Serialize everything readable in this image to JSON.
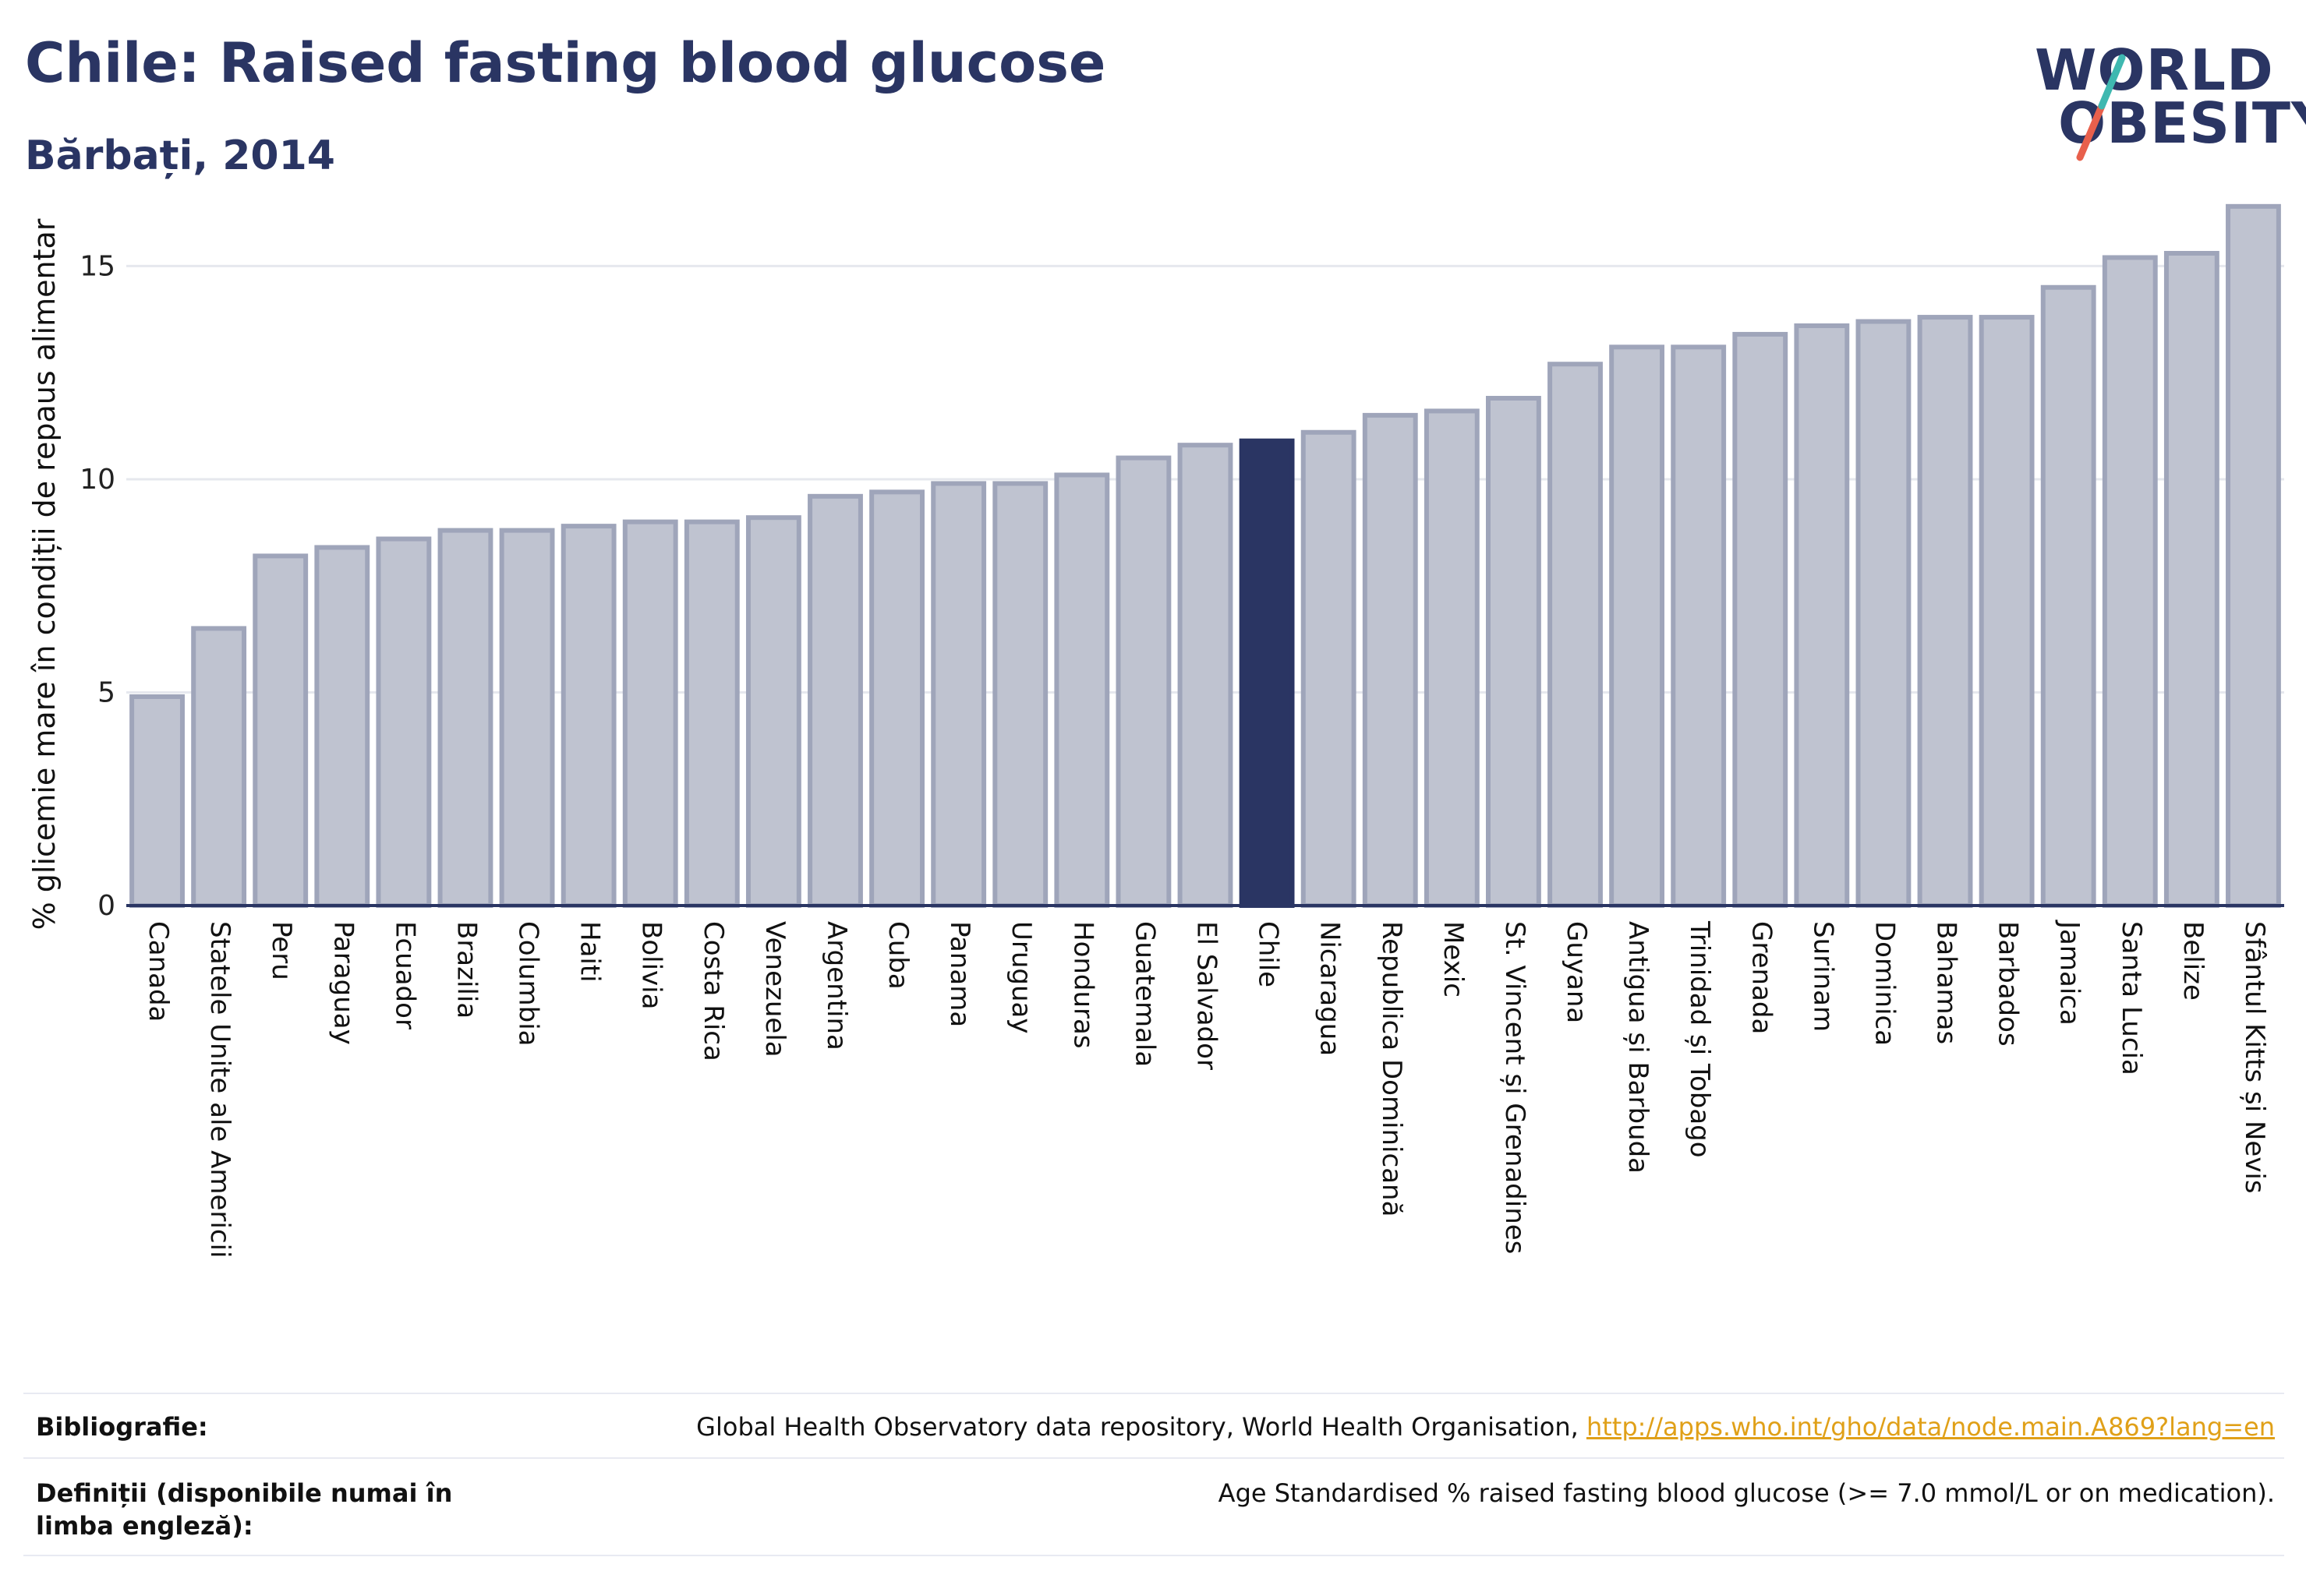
{
  "header": {
    "title": "Chile: Raised fasting blood glucose",
    "subtitle": "Bărbați, 2014"
  },
  "logo": {
    "line1": "WORLD",
    "line2": "OBESITY",
    "colors": {
      "text": "#2a3563",
      "slash_teal": "#3fb8b0",
      "slash_red": "#e8604c"
    }
  },
  "chart_data": {
    "type": "bar",
    "title": "Chile: Raised fasting blood glucose",
    "subtitle": "Bărbați, 2014",
    "ylabel": "% glicemie mare în condiții de repaus alimentar",
    "xlabel": "",
    "ylim": [
      0,
      17
    ],
    "yticks": [
      0,
      5,
      10,
      15
    ],
    "grid": true,
    "highlight": "Chile",
    "colors": {
      "bar": "#bfc3d0",
      "bar_border": "#9fa5ba",
      "highlight": "#2a3563"
    },
    "categories": [
      "Canada",
      "Statele Unite ale Americii",
      "Peru",
      "Paraguay",
      "Ecuador",
      "Brazilia",
      "Columbia",
      "Haiti",
      "Bolivia",
      "Costa Rica",
      "Venezuela",
      "Argentina",
      "Cuba",
      "Panama",
      "Uruguay",
      "Honduras",
      "Guatemala",
      "El Salvador",
      "Chile",
      "Nicaragua",
      "Republica Dominicană",
      "Mexic",
      "St. Vincent și Grenadines",
      "Guyana",
      "Antigua și Barbuda",
      "Trinidad și Tobago",
      "Grenada",
      "Surinam",
      "Dominica",
      "Bahamas",
      "Barbados",
      "Jamaica",
      "Santa Lucia",
      "Belize",
      "Sfântul Kitts și Nevis"
    ],
    "values": [
      4.9,
      6.5,
      8.2,
      8.4,
      8.6,
      8.8,
      8.8,
      8.9,
      9.0,
      9.0,
      9.1,
      9.6,
      9.7,
      9.9,
      9.9,
      10.1,
      10.5,
      10.8,
      10.9,
      11.1,
      11.5,
      11.6,
      11.9,
      12.7,
      13.1,
      13.1,
      13.4,
      13.6,
      13.7,
      13.8,
      13.8,
      14.5,
      15.2,
      15.3,
      16.4
    ]
  },
  "footer": {
    "bibliography_label": "Bibliografie:",
    "bibliography_text": "Global Health Observatory data repository, World Health Organisation, ",
    "bibliography_link": "http://apps.who.int/gho/data/node.main.A869?lang=en",
    "definitions_label": "Definiții (disponibile numai în limba engleză):",
    "definitions_text": "Age Standardised % raised fasting blood glucose (>= 7.0 mmol/L or on medication)."
  }
}
